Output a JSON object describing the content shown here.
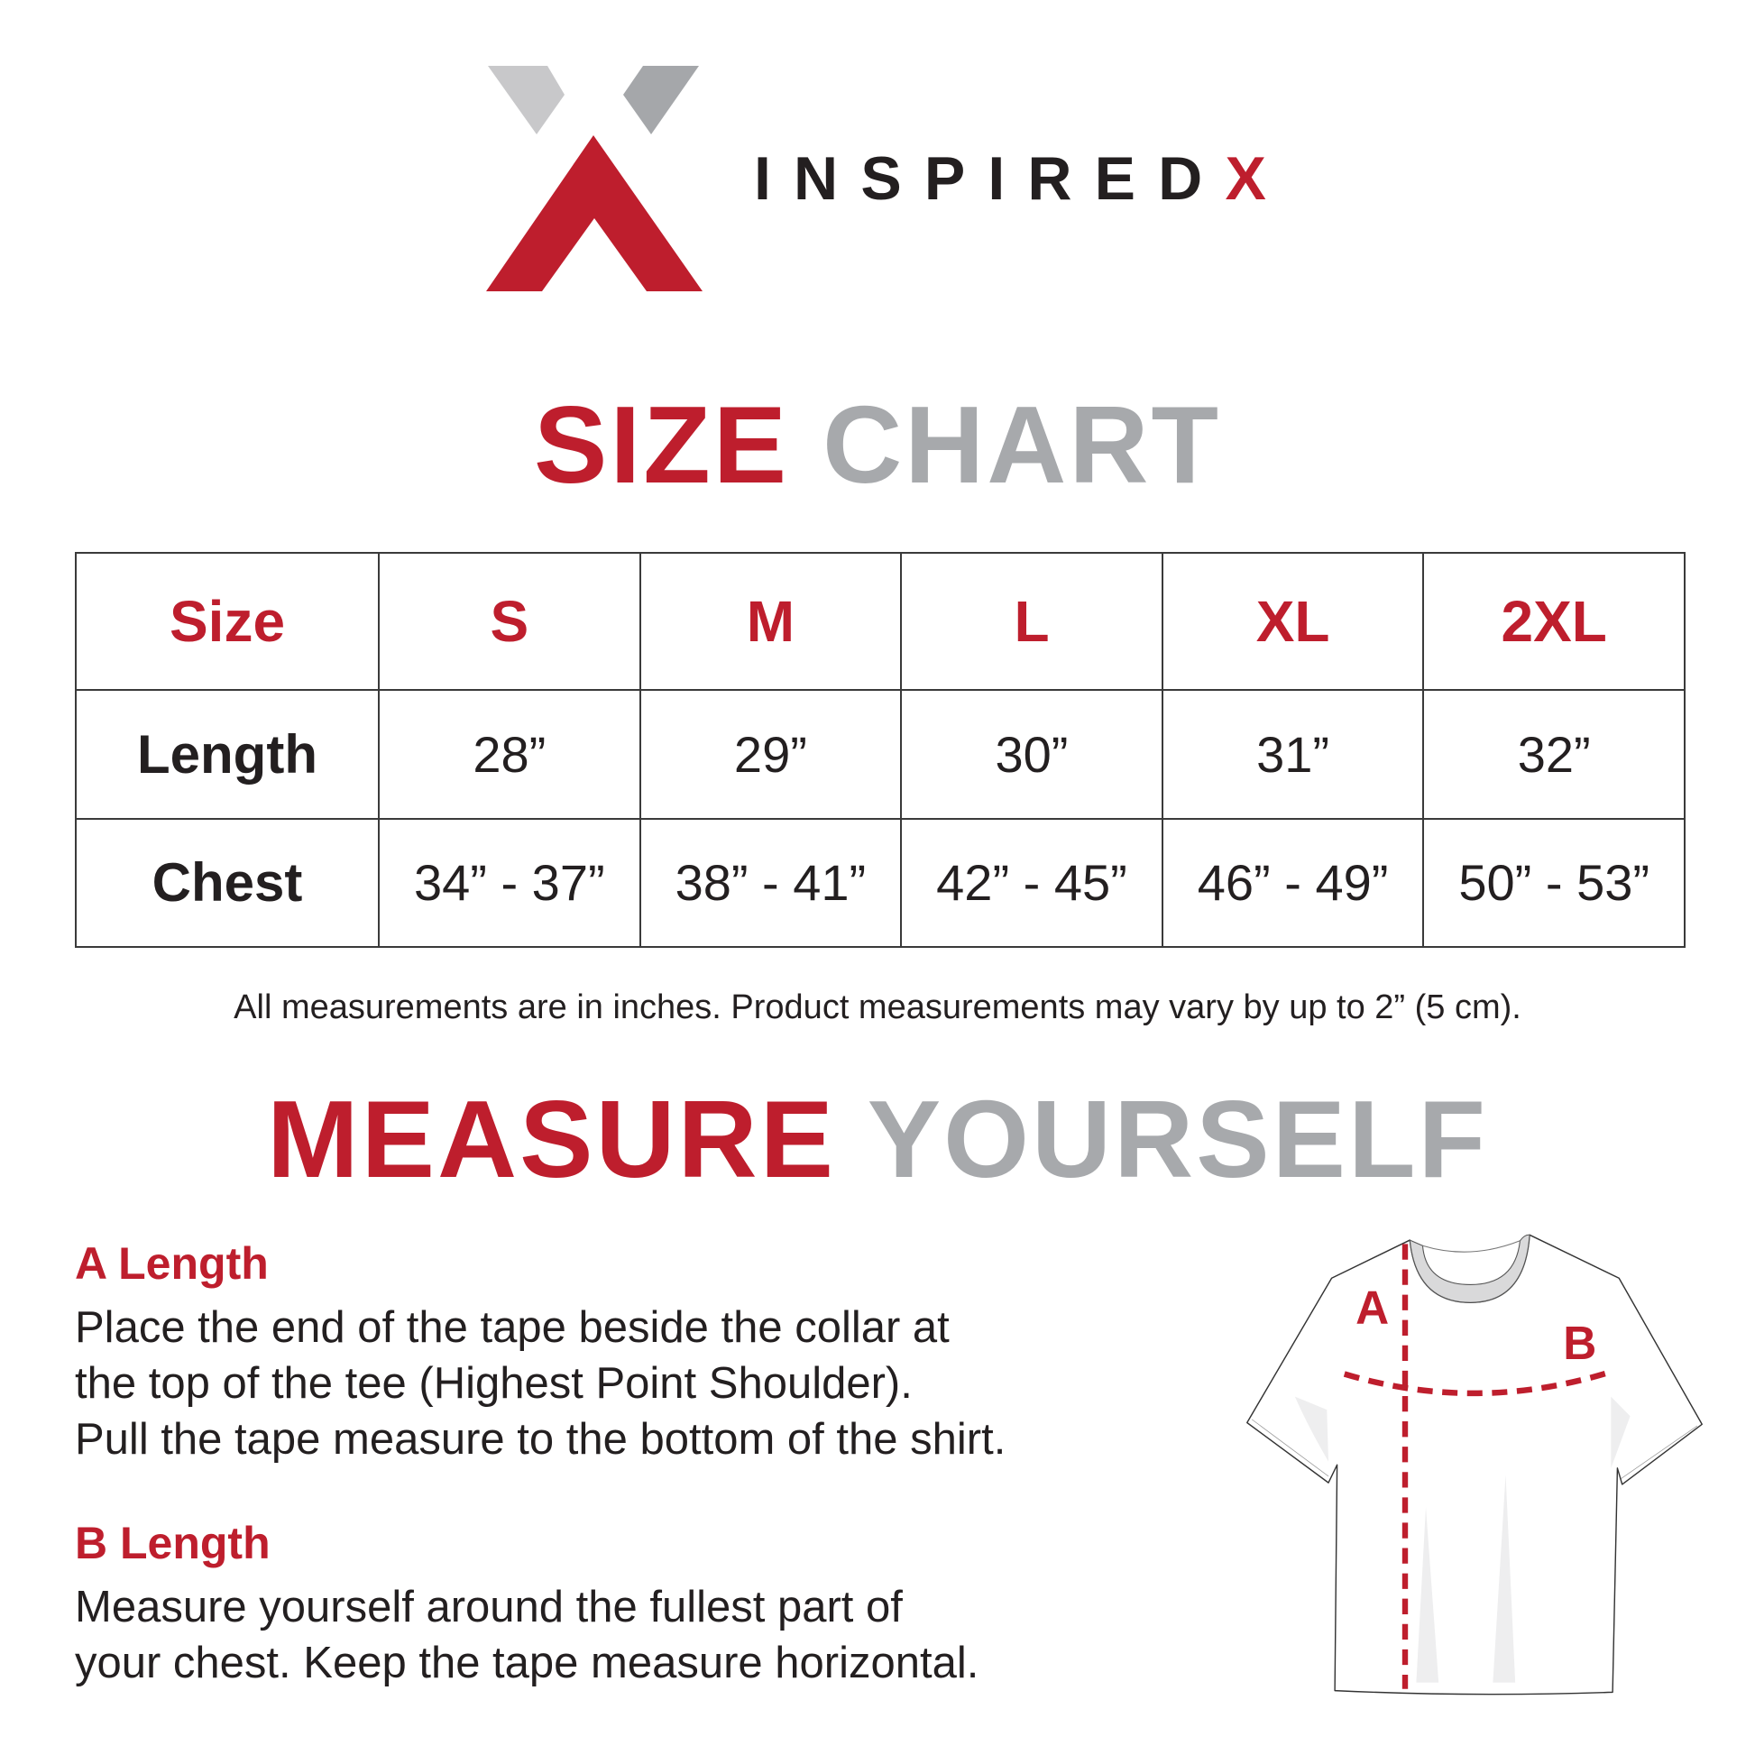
{
  "colors": {
    "red": "#be1e2d",
    "grey": "#a7a9ac",
    "logo_grey_light": "#c8c8ca",
    "logo_grey_dark": "#a5a7aa",
    "text": "#231f20"
  },
  "logo": {
    "brand_main": "INSPIRED",
    "brand_accent": "X"
  },
  "size_chart": {
    "title_red": "SIZE",
    "title_grey": "CHART",
    "header": [
      "Size",
      "S",
      "M",
      "L",
      "XL",
      "2XL"
    ],
    "rows": [
      {
        "label": "Length",
        "values": [
          "28”",
          "29”",
          "30”",
          "31”",
          "32”"
        ]
      },
      {
        "label": "Chest",
        "values": [
          "34” - 37”",
          "38” - 41”",
          "42” - 45”",
          "46” - 49”",
          "50” - 53”"
        ]
      }
    ],
    "note": "All measurements are in inches. Product measurements may vary by up to 2” (5 cm)."
  },
  "measure": {
    "title_red": "MEASURE",
    "title_grey": "YOURSELF",
    "a_heading": "A Length",
    "a_lines": [
      "Place the end of the tape beside the collar at",
      "the top of the tee (Highest Point Shoulder).",
      "Pull the tape measure to the bottom of the shirt."
    ],
    "b_heading": "B Length",
    "b_lines": [
      "Measure yourself around the fullest part of",
      "your chest. Keep the tape measure horizontal."
    ],
    "diagram_labels": {
      "a": "A",
      "b": "B"
    }
  }
}
